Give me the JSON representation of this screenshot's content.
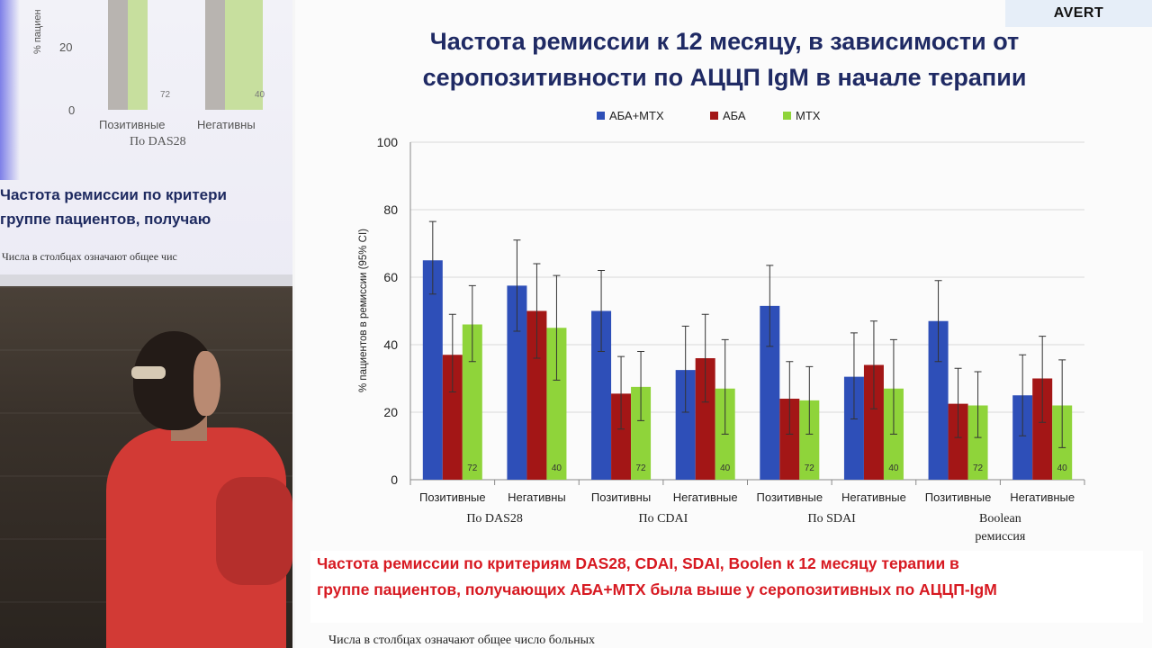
{
  "corner_label": "AVERT",
  "slide_title_line1": "Частота ремиссии к 12 месяцу, в зависимости от",
  "slide_title_line2": "серопозитивности по АЦЦП IgM в начале терапии",
  "conclusion_line1": "Частота ремиссии по критериям DAS28, CDAI, SDAI, Boolen к 12 месяцу терапии в",
  "conclusion_line2": "группе пациентов, получающих АБА+МТХ была выше у серопозитивных по АЦЦП-IgM",
  "footnote": "Числа в столбцах означают общее число больных",
  "background_screen": {
    "axis_label": "% пациен",
    "tick_20": "20",
    "tick_0": "0",
    "cat_pos": "Позитивные",
    "cat_neg": "Негативны",
    "group": "По DAS28",
    "count_a": "72",
    "count_b": "40",
    "text1": "Частота ремиссии по критери",
    "text2": "группе пациентов, получаю",
    "text3": "Числа в столбцах означают общее чис"
  },
  "colors": {
    "aba_mtx": "#2e4fb8",
    "aba": "#a31616",
    "mtx": "#8fd43a",
    "title": "#1f2a64",
    "conclusion": "#d71921"
  },
  "chart_data": {
    "type": "bar",
    "title": "",
    "xlabel": "",
    "ylabel": "% пациентов в ремиссии (95% CI)",
    "ylim": [
      0,
      100
    ],
    "yticks": [
      0,
      20,
      40,
      60,
      80,
      100
    ],
    "grid": true,
    "legend": "top",
    "categories": [
      "Позитивные",
      "Негативны",
      "Позитивны",
      "Негативные",
      "Позитивные",
      "Негативные",
      "Позитивные",
      "Негативные"
    ],
    "groups": [
      {
        "label": "По DAS28",
        "span": [
          0,
          1
        ]
      },
      {
        "label": "По CDAI",
        "span": [
          2,
          3
        ]
      },
      {
        "label": "По SDAI",
        "span": [
          4,
          5
        ]
      },
      {
        "label": "Boolean ремиссия",
        "span": [
          6,
          7
        ]
      }
    ],
    "series": [
      {
        "name": "АБА+МТХ",
        "color": "#2e4fb8",
        "values": [
          65,
          57.5,
          50,
          32.5,
          51.5,
          30.5,
          47,
          25
        ],
        "ci_low": [
          55,
          44,
          38,
          20,
          39.5,
          18,
          35,
          13
        ],
        "ci_high": [
          76.5,
          71,
          62,
          45.5,
          63.5,
          43.5,
          59,
          37
        ],
        "counts": [
          "",
          "",
          "",
          "",
          "",
          "",
          "",
          ""
        ]
      },
      {
        "name": "АБА",
        "color": "#a31616",
        "values": [
          37,
          50,
          25.5,
          36,
          24,
          34,
          22.5,
          30
        ],
        "ci_low": [
          26,
          36,
          15,
          23,
          13.5,
          21,
          12.5,
          17
        ],
        "ci_high": [
          49,
          64,
          36.5,
          49,
          35,
          47,
          33,
          42.5
        ],
        "counts": [
          "",
          "",
          "",
          "",
          "",
          "",
          "",
          ""
        ]
      },
      {
        "name": "МТХ",
        "color": "#8fd43a",
        "values": [
          46,
          45,
          27.5,
          27,
          23.5,
          27,
          22,
          22
        ],
        "ci_low": [
          35,
          29.5,
          17.5,
          13.5,
          13.5,
          13.5,
          12.5,
          9.5
        ],
        "ci_high": [
          57.5,
          60.5,
          38,
          41.5,
          33.5,
          41.5,
          32,
          35.5
        ],
        "counts": [
          "72",
          "40",
          "72",
          "40",
          "72",
          "40",
          "72",
          "40"
        ]
      }
    ]
  }
}
